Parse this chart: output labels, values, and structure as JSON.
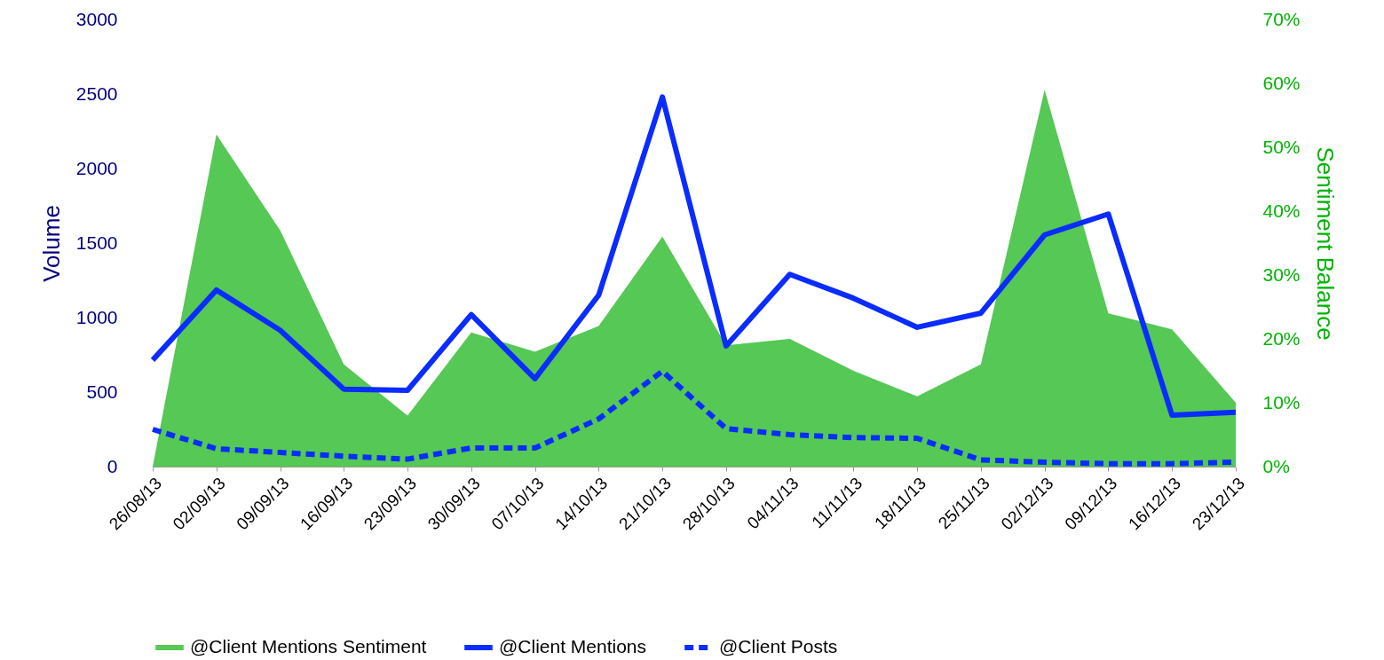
{
  "chart_data": {
    "type": "line",
    "ylabel": "Volume",
    "y2label": "Sentiment Balance",
    "categories": [
      "26/08/13",
      "02/09/13",
      "09/09/13",
      "16/09/13",
      "23/09/13",
      "30/09/13",
      "07/10/13",
      "14/10/13",
      "21/10/13",
      "28/10/13",
      "04/11/13",
      "11/11/13",
      "18/11/13",
      "25/11/13",
      "02/12/13",
      "09/12/13",
      "16/12/13",
      "23/12/13"
    ],
    "series": [
      {
        "name": "@Client Mentions Sentiment",
        "type": "area",
        "axis": "y2",
        "color": "#55c855",
        "values": [
          0,
          52,
          37,
          16,
          8,
          21,
          18,
          22,
          36,
          19,
          20,
          15,
          11,
          16,
          59,
          24,
          21.5,
          10
        ]
      },
      {
        "name": "@Client Mentions",
        "line_style": "solid",
        "color": "#0a2cff",
        "values": [
          715,
          1185,
          915,
          520,
          512,
          1020,
          590,
          1150,
          2480,
          810,
          1290,
          1130,
          935,
          1030,
          1555,
          1695,
          345,
          365
        ]
      },
      {
        "name": "@Client Posts",
        "line_style": "dashed",
        "color": "#0a2cff",
        "values": [
          250,
          120,
          95,
          70,
          50,
          125,
          125,
          320,
          640,
          255,
          215,
          195,
          190,
          45,
          30,
          20,
          20,
          30
        ]
      }
    ],
    "ylim": [
      0,
      3000
    ],
    "yticks": [
      0,
      500,
      1000,
      1500,
      2000,
      2500,
      3000
    ],
    "y2lim": [
      0,
      70
    ],
    "y2ticks": [
      {
        "value": 0,
        "label": "0%"
      },
      {
        "value": 10,
        "label": "10%"
      },
      {
        "value": 20,
        "label": "20%"
      },
      {
        "value": 30,
        "label": "30%"
      },
      {
        "value": 40,
        "label": "40%"
      },
      {
        "value": 50,
        "label": "50%"
      },
      {
        "value": 60,
        "label": "60%"
      },
      {
        "value": 70,
        "label": "70%"
      }
    ],
    "grid": false,
    "legend": "bottom"
  }
}
